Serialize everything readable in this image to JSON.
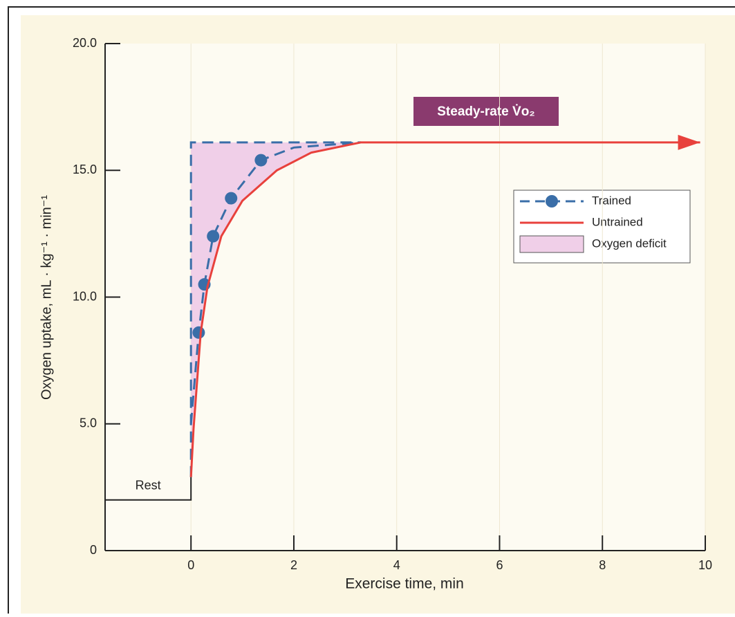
{
  "chart_data": {
    "type": "line",
    "xlabel": "Exercise time, min",
    "ylabel": "Oxygen uptake, mL · kg⁻¹ · min⁻¹",
    "annotation": "Steady-rate V̇o₂",
    "xlim": [
      -1.67,
      10
    ],
    "ylim": [
      0,
      20
    ],
    "xticks": [
      0,
      2,
      4,
      6,
      8,
      10
    ],
    "yticks": [
      0,
      {
        "value": 5,
        "label": "5.0"
      },
      {
        "value": 10,
        "label": "10.0"
      },
      {
        "value": 15,
        "label": "15.0"
      },
      {
        "value": 20,
        "label": "20.0"
      }
    ],
    "baseline": {
      "name": "Rest",
      "color": "#222222",
      "x": [
        -1.67,
        0,
        0
      ],
      "values": [
        2,
        2,
        2.9
      ]
    },
    "series": [
      {
        "name": "Trained",
        "color": "#3a6ea8",
        "style": "dashed",
        "x": [
          0,
          0.15,
          0.26,
          0.43,
          0.78,
          1.36,
          2.0,
          3.3
        ],
        "values": [
          5,
          8.6,
          10.5,
          12.4,
          13.9,
          15.4,
          15.9,
          16.1
        ],
        "marker_x": [
          0.15,
          0.26,
          0.43,
          0.78,
          1.36
        ],
        "marker_values": [
          8.6,
          10.5,
          12.4,
          13.9,
          15.4
        ]
      },
      {
        "name": "Untrained",
        "color": "#e8413c",
        "style": "solid",
        "x": [
          0,
          0.05,
          0.19,
          0.32,
          0.59,
          1.0,
          1.67,
          2.34,
          3.3,
          9.9
        ],
        "values": [
          2.9,
          4.8,
          8.6,
          10.4,
          12.4,
          13.8,
          15.0,
          15.7,
          16.1,
          16.1
        ]
      },
      {
        "name": "Oxygen deficit",
        "color": "#f0cfe8",
        "style": "area",
        "x": [
          0,
          0,
          3.3
        ],
        "values": [
          2.9,
          16.1,
          16.1
        ]
      }
    ]
  }
}
